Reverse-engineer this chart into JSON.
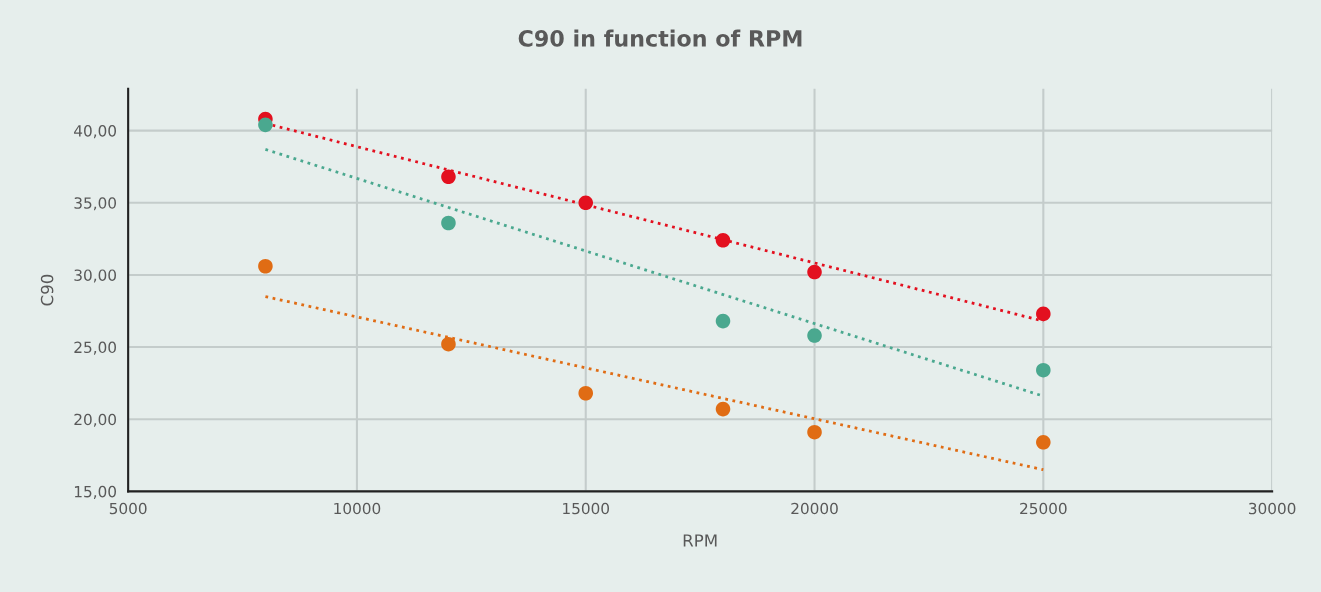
{
  "chart_data": {
    "type": "scatter",
    "title": "C90 in function of RPM",
    "xlabel": "RPM",
    "ylabel": "C90",
    "xlim": [
      5000,
      30000
    ],
    "xticks": [
      5000,
      10000,
      15000,
      20000,
      25000,
      30000
    ],
    "ylim": [
      15,
      42.9
    ],
    "yticks": [
      {
        "value": 15,
        "label": "15,00"
      },
      {
        "value": 20,
        "label": "20,00"
      },
      {
        "value": 25,
        "label": "25,00"
      },
      {
        "value": 30,
        "label": "30,00"
      },
      {
        "value": 35,
        "label": "35,00"
      },
      {
        "value": 40,
        "label": "40,00"
      }
    ],
    "grid": true,
    "legend": false,
    "marker": "circle",
    "series": [
      {
        "type": "line",
        "color": "#4aa88f",
        "x": [
          8000,
          25000
        ],
        "values": [
          38.7,
          21.6
        ],
        "line_style": "dotted",
        "marker": "none"
      },
      {
        "type": "line",
        "color": "#e06c14",
        "x": [
          8000,
          25000
        ],
        "values": [
          28.5,
          16.5
        ],
        "line_style": "dotted",
        "marker": "none"
      },
      {
        "type": "line",
        "color": "#e3101f",
        "x": [
          8000,
          25000
        ],
        "values": [
          40.5,
          26.8
        ],
        "line_style": "dotted",
        "marker": "none"
      },
      {
        "color": "#e06c14",
        "x": [
          8000,
          12000,
          15000,
          18000,
          20000,
          25000
        ],
        "values": [
          30.6,
          25.2,
          21.8,
          20.7,
          19.1,
          18.4
        ]
      },
      {
        "color": "#e3101f",
        "x": [
          8000,
          12000,
          15000,
          18000,
          20000,
          25000
        ],
        "values": [
          40.8,
          36.8,
          35.0,
          32.4,
          30.2,
          27.3
        ]
      },
      {
        "color": "#4aa88f",
        "x": [
          8000,
          12000,
          18000,
          20000,
          25000
        ],
        "values": [
          40.4,
          33.6,
          26.8,
          25.8,
          23.4
        ]
      }
    ]
  }
}
